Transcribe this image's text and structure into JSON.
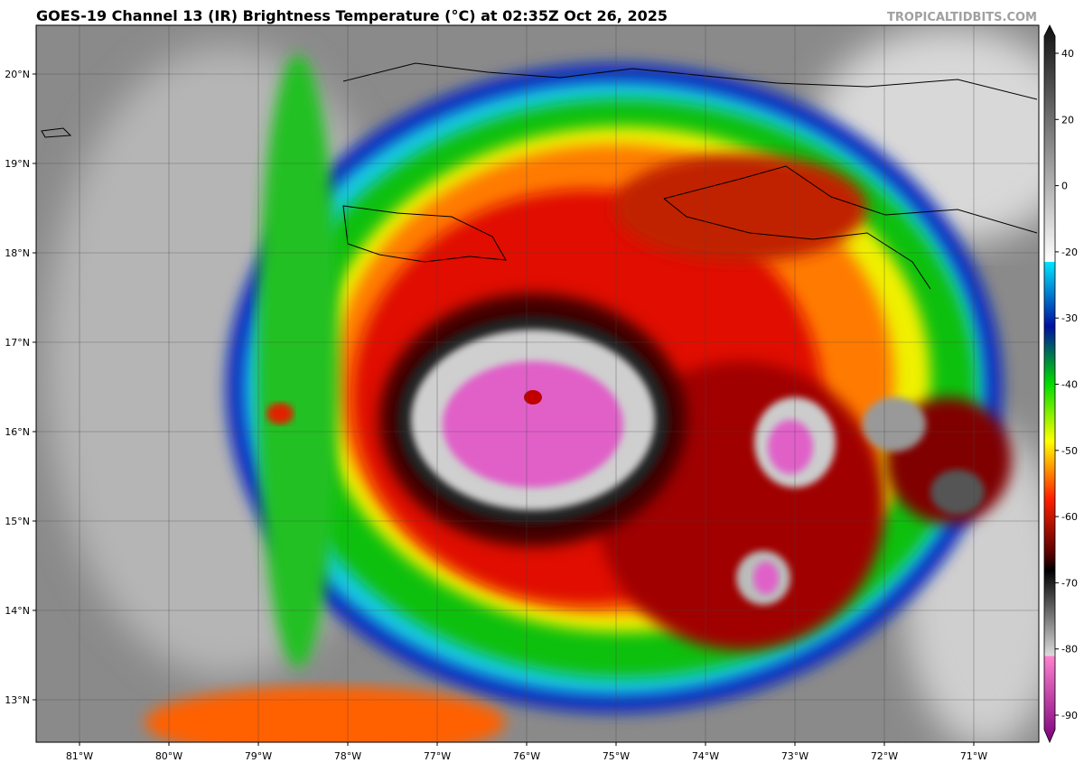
{
  "header": {
    "title": "GOES-19 Channel 13 (IR) Brightness Temperature (°C) at 02:35Z Oct 26, 2025",
    "credit": "TROPICALTIDBITS.COM"
  },
  "map": {
    "lon_labels": [
      "81°W",
      "80°W",
      "79°W",
      "78°W",
      "77°W",
      "76°W",
      "75°W",
      "74°W",
      "73°W",
      "72°W",
      "71°W"
    ],
    "lat_labels": [
      "20°N",
      "19°N",
      "18°N",
      "17°N",
      "16°N",
      "15°N",
      "14°N",
      "13°N"
    ]
  },
  "colorbar": {
    "ticks": [
      "40",
      "20",
      "0",
      "-20",
      "-30",
      "-40",
      "-50",
      "-60",
      "-70",
      "-80",
      "-90"
    ]
  }
}
